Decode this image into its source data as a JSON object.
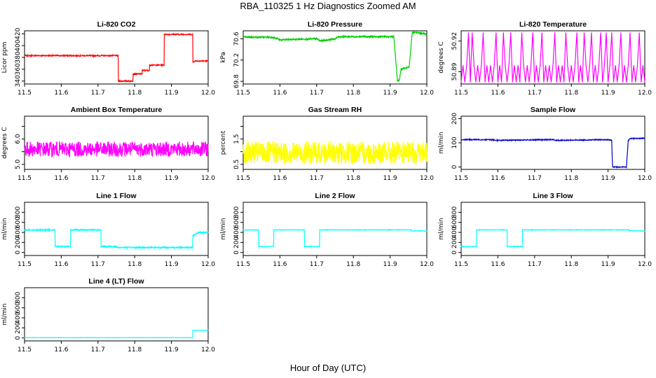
{
  "figure": {
    "title": "RBA_110325  1 Hz Diagnostics Zoomed AM",
    "xlabel": "Hour of Day (UTC)"
  },
  "chart_data": [
    {
      "type": "line",
      "title": "Li-820 CO2",
      "ylabel": "Licor ppm",
      "color": "#ff0000",
      "xlim": [
        11.5,
        12.0
      ],
      "ylim": [
        335,
        425
      ],
      "xticks": [
        "11.5",
        "11.6",
        "11.7",
        "11.8",
        "11.9",
        "12.0"
      ],
      "yticks": [
        340,
        360,
        380,
        400,
        420
      ],
      "noise": 1,
      "x": [
        11.5,
        11.755,
        11.755,
        11.795,
        11.795,
        11.82,
        11.82,
        11.84,
        11.84,
        11.88,
        11.88,
        11.958,
        11.958,
        11.965,
        12.0
      ],
      "y": [
        383,
        383,
        340,
        340,
        352,
        352,
        358,
        358,
        367,
        367,
        419,
        419,
        372,
        374,
        374
      ]
    },
    {
      "type": "line",
      "title": "Li-820 Pressure",
      "ylabel": "kPa",
      "color": "#00cc00",
      "xlim": [
        11.5,
        12.0
      ],
      "ylim": [
        69.75,
        70.75
      ],
      "xticks": [
        "11.5",
        "11.6",
        "11.7",
        "11.8",
        "11.9",
        "12.0"
      ],
      "yticks": [
        69.8,
        70.2,
        70.6
      ],
      "noise": 0.015,
      "x": [
        11.5,
        11.58,
        11.6,
        11.7,
        11.71,
        11.75,
        11.76,
        11.91,
        11.92,
        11.925,
        11.93,
        11.95,
        11.952,
        11.96,
        11.965,
        11.99,
        12.0
      ],
      "y": [
        70.63,
        70.63,
        70.58,
        70.6,
        70.56,
        70.6,
        70.64,
        70.64,
        69.82,
        69.82,
        70.03,
        70.06,
        70.06,
        70.7,
        70.72,
        70.7,
        70.68
      ]
    },
    {
      "type": "line",
      "title": "Li-820 Temperature",
      "ylabel": "degrees C",
      "color": "#ff00ff",
      "xlim": [
        11.5,
        12.0
      ],
      "ylim": [
        50.878,
        50.93
      ],
      "xticks": [
        "11.5",
        "11.6",
        "11.7",
        "11.8",
        "11.9",
        "12.0"
      ],
      "yticks": [
        50.89,
        50.92
      ],
      "noise": 0,
      "x": [
        11.5,
        11.505,
        11.51,
        11.515,
        11.52,
        11.525,
        11.53,
        11.535,
        11.54,
        11.545,
        11.55,
        11.555,
        11.56,
        11.565,
        11.57,
        11.575,
        11.58,
        11.585,
        11.59,
        11.595,
        11.6,
        11.605,
        11.61,
        11.615,
        11.62,
        11.625,
        11.63,
        11.635,
        11.64,
        11.645,
        11.65,
        11.655,
        11.66,
        11.665,
        11.67,
        11.675,
        11.68,
        11.685,
        11.69,
        11.695,
        11.7,
        11.705,
        11.71,
        11.715,
        11.72,
        11.725,
        11.73,
        11.735,
        11.74,
        11.745,
        11.75,
        11.755,
        11.76,
        11.765,
        11.77,
        11.775,
        11.78,
        11.785,
        11.79,
        11.795,
        11.8,
        11.805,
        11.81,
        11.815,
        11.82,
        11.825,
        11.83,
        11.835,
        11.84,
        11.845,
        11.85,
        11.855,
        11.86,
        11.865,
        11.87,
        11.875,
        11.88,
        11.885,
        11.89,
        11.895,
        11.9,
        11.905,
        11.91,
        11.915,
        11.92,
        11.925,
        11.93,
        11.935,
        11.94,
        11.945,
        11.95,
        11.955,
        11.96,
        11.965,
        11.97,
        11.975,
        11.98,
        11.985,
        11.99,
        11.995,
        12.0
      ],
      "y": [
        50.88,
        50.896,
        50.88,
        50.896,
        50.928,
        50.88,
        50.928,
        50.896,
        50.88,
        50.896,
        50.88,
        50.896,
        50.928,
        50.88,
        50.896,
        50.88,
        50.896,
        50.88,
        50.896,
        50.928,
        50.88,
        50.896,
        50.88,
        50.928,
        50.896,
        50.88,
        50.896,
        50.928,
        50.88,
        50.896,
        50.88,
        50.896,
        50.88,
        50.928,
        50.896,
        50.88,
        50.896,
        50.88,
        50.896,
        50.928,
        50.88,
        50.896,
        50.88,
        50.896,
        50.928,
        50.88,
        50.896,
        50.88,
        50.896,
        50.88,
        50.896,
        50.928,
        50.88,
        50.896,
        50.88,
        50.896,
        50.88,
        50.928,
        50.896,
        50.88,
        50.896,
        50.88,
        50.896,
        50.928,
        50.88,
        50.896,
        50.88,
        50.928,
        50.896,
        50.88,
        50.896,
        50.928,
        50.88,
        50.896,
        50.88,
        50.896,
        50.928,
        50.88,
        50.896,
        50.928,
        50.88,
        50.896,
        50.928,
        50.88,
        50.896,
        50.88,
        50.896,
        50.928,
        50.88,
        50.896,
        50.88,
        50.896,
        50.928,
        50.88,
        50.896,
        50.88,
        50.896,
        50.928,
        50.88,
        50.896,
        50.88
      ]
    },
    {
      "type": "line",
      "title": "Ambient Box Temperature",
      "ylabel": "degrees C",
      "color": "#ff00ff",
      "xlim": [
        11.5,
        12.0
      ],
      "ylim": [
        4.8,
        6.9
      ],
      "xticks": [
        "11.5",
        "11.6",
        "11.7",
        "11.8",
        "11.9",
        "12.0"
      ],
      "yticks": [
        5.0,
        5.5,
        6.0,
        6.5
      ],
      "ytick_labels": [
        "5.0",
        "",
        "6.0",
        ""
      ],
      "noise": 0.3,
      "x": [
        11.5,
        12.0
      ],
      "y": [
        5.6,
        5.6
      ]
    },
    {
      "type": "line",
      "title": "Gas Stream RH",
      "ylabel": "percent",
      "color": "#ffff00",
      "xlim": [
        11.5,
        12.0
      ],
      "ylim": [
        0.3,
        2.4
      ],
      "xticks": [
        "11.5",
        "11.6",
        "11.7",
        "11.8",
        "11.9",
        "12.0"
      ],
      "yticks": [
        0.5,
        1.0,
        1.5,
        2.0
      ],
      "ytick_labels": [
        "0.5",
        "",
        "1.5",
        ""
      ],
      "noise": 0.45,
      "x": [
        11.5,
        12.0
      ],
      "y": [
        0.95,
        0.95
      ]
    },
    {
      "type": "line",
      "title": "Sample Flow",
      "ylabel": "ml/min",
      "color": "#0000cc",
      "xlim": [
        11.5,
        12.0
      ],
      "ylim": [
        -10,
        210
      ],
      "xticks": [
        "11.5",
        "11.6",
        "11.7",
        "11.8",
        "11.9",
        "12.0"
      ],
      "yticks": [
        0,
        100,
        200
      ],
      "noise": 2,
      "x": [
        11.5,
        11.58,
        11.6,
        11.69,
        11.75,
        11.76,
        11.9,
        11.91,
        11.912,
        11.915,
        11.95,
        11.955,
        11.96,
        12.0
      ],
      "y": [
        113,
        113,
        110,
        112,
        113,
        110,
        113,
        110,
        2,
        0,
        0,
        110,
        118,
        118
      ]
    },
    {
      "type": "line",
      "title": "Line 1 Flow",
      "ylabel": "ml/min",
      "color": "#00ffff",
      "xlim": [
        11.5,
        12.0
      ],
      "ylim": [
        -60,
        1000
      ],
      "xticks": [
        "11.5",
        "11.6",
        "11.7",
        "11.8",
        "11.9",
        "12.0"
      ],
      "yticks": [
        0,
        200,
        400,
        600,
        800
      ],
      "noise": 12,
      "x": [
        11.5,
        11.583,
        11.583,
        11.625,
        11.625,
        11.708,
        11.708,
        11.75,
        11.75,
        11.958,
        11.958,
        11.975,
        12.0
      ],
      "y": [
        450,
        450,
        120,
        120,
        450,
        450,
        120,
        120,
        100,
        100,
        330,
        400,
        400
      ]
    },
    {
      "type": "line",
      "title": "Line 2 Flow",
      "ylabel": "ml/min",
      "color": "#00ffff",
      "xlim": [
        11.5,
        12.0
      ],
      "ylim": [
        -60,
        1000
      ],
      "xticks": [
        "11.5",
        "11.6",
        "11.7",
        "11.8",
        "11.9",
        "12.0"
      ],
      "yticks": [
        0,
        200,
        400,
        600,
        800
      ],
      "noise": 5,
      "x": [
        11.5,
        11.542,
        11.542,
        11.583,
        11.583,
        11.667,
        11.667,
        11.708,
        11.708,
        11.958,
        11.958,
        12.0
      ],
      "y": [
        450,
        450,
        120,
        120,
        450,
        450,
        120,
        120,
        450,
        450,
        430,
        430
      ]
    },
    {
      "type": "line",
      "title": "Line 3 Flow",
      "ylabel": "ml/min",
      "color": "#00ffff",
      "xlim": [
        11.5,
        12.0
      ],
      "ylim": [
        -60,
        1000
      ],
      "xticks": [
        "11.5",
        "11.6",
        "11.7",
        "11.8",
        "11.9",
        "12.0"
      ],
      "yticks": [
        0,
        200,
        400,
        600,
        800
      ],
      "noise": 5,
      "x": [
        11.5,
        11.542,
        11.542,
        11.625,
        11.625,
        11.667,
        11.667,
        11.958,
        11.958,
        12.0
      ],
      "y": [
        120,
        120,
        450,
        450,
        120,
        120,
        450,
        450,
        430,
        430
      ]
    },
    {
      "type": "line",
      "title": "Line 4 (LT) Flow",
      "ylabel": "ml/min",
      "color": "#00ffff",
      "xlim": [
        11.5,
        12.0
      ],
      "ylim": [
        -60,
        1000
      ],
      "xticks": [
        "11.5",
        "11.6",
        "11.7",
        "11.8",
        "11.9",
        "12.0"
      ],
      "yticks": [
        0,
        200,
        400,
        600,
        800
      ],
      "noise": 2,
      "x": [
        11.5,
        11.958,
        11.958,
        12.0
      ],
      "y": [
        5,
        5,
        150,
        150
      ]
    }
  ]
}
